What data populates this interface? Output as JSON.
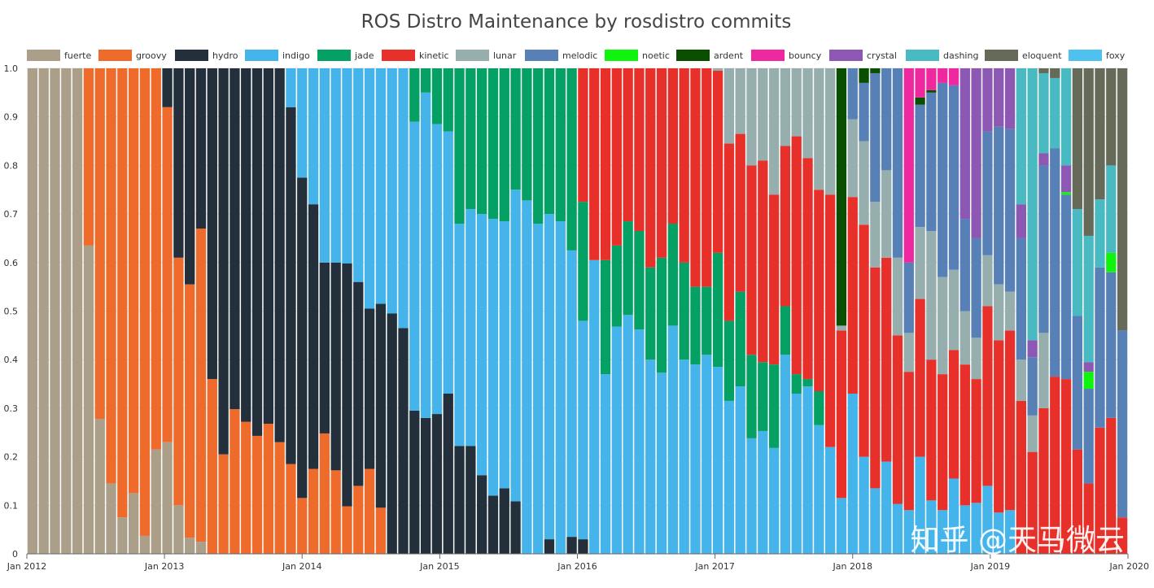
{
  "chart_data": {
    "type": "stacked-bar",
    "title": "ROS Distro Maintenance by rosdistro commits",
    "xlabel": "",
    "ylabel": "",
    "ylim": [
      0,
      1
    ],
    "yticks": [
      "0",
      "0.1",
      "0.2",
      "0.3",
      "0.4",
      "0.5",
      "0.6",
      "0.7",
      "0.8",
      "0.9",
      "1.0"
    ],
    "x_range_months": [
      0,
      96
    ],
    "xticks": [
      {
        "label": "Jan 2012",
        "month": 0
      },
      {
        "label": "Jan 2013",
        "month": 12
      },
      {
        "label": "Jan 2014",
        "month": 24
      },
      {
        "label": "Jan 2015",
        "month": 36
      },
      {
        "label": "Jan 2016",
        "month": 48
      },
      {
        "label": "Jan 2017",
        "month": 60
      },
      {
        "label": "Jan 2018",
        "month": 72
      },
      {
        "label": "Jan 2019",
        "month": 84
      },
      {
        "label": "Jan 2020",
        "month": 96
      }
    ],
    "series": [
      {
        "name": "fuerte",
        "color": "#ab9f8a"
      },
      {
        "name": "groovy",
        "color": "#ee6b2b"
      },
      {
        "name": "hydro",
        "color": "#232f3a"
      },
      {
        "name": "indigo",
        "color": "#44b4ea"
      },
      {
        "name": "jade",
        "color": "#05a064"
      },
      {
        "name": "kinetic",
        "color": "#e73029"
      },
      {
        "name": "lunar",
        "color": "#96afae"
      },
      {
        "name": "melodic",
        "color": "#5780b7"
      },
      {
        "name": "noetic",
        "color": "#10f30c"
      },
      {
        "name": "ardent",
        "color": "#0a4f00"
      },
      {
        "name": "bouncy",
        "color": "#ee29a0"
      },
      {
        "name": "crystal",
        "color": "#8c58b4"
      },
      {
        "name": "dashing",
        "color": "#4abac2"
      },
      {
        "name": "eloquent",
        "color": "#666a58"
      },
      {
        "name": "foxy",
        "color": "#4fc1ef"
      }
    ],
    "bars": [
      {
        "fuerte": 1.0
      },
      {
        "fuerte": 1.0
      },
      {
        "fuerte": 1.0
      },
      {
        "fuerte": 1.0
      },
      {
        "fuerte": 1.0
      },
      {
        "fuerte": 0.635,
        "groovy": 0.365
      },
      {
        "fuerte": 0.278,
        "groovy": 0.722
      },
      {
        "fuerte": 0.145,
        "groovy": 0.855
      },
      {
        "fuerte": 0.075,
        "groovy": 0.925
      },
      {
        "fuerte": 0.125,
        "groovy": 0.875
      },
      {
        "fuerte": 0.037,
        "groovy": 0.963
      },
      {
        "fuerte": 0.215,
        "groovy": 0.785
      },
      {
        "fuerte": 0.23,
        "groovy": 0.69,
        "hydro": 0.08
      },
      {
        "fuerte": 0.1,
        "groovy": 0.51,
        "hydro": 0.39
      },
      {
        "fuerte": 0.033,
        "groovy": 0.522,
        "hydro": 0.445
      },
      {
        "fuerte": 0.025,
        "groovy": 0.645,
        "hydro": 0.33
      },
      {
        "groovy": 0.36,
        "hydro": 0.64
      },
      {
        "groovy": 0.205,
        "hydro": 0.795
      },
      {
        "groovy": 0.298,
        "hydro": 0.702
      },
      {
        "groovy": 0.272,
        "hydro": 0.728
      },
      {
        "groovy": 0.243,
        "hydro": 0.757
      },
      {
        "groovy": 0.268,
        "hydro": 0.732
      },
      {
        "groovy": 0.23,
        "hydro": 0.77
      },
      {
        "groovy": 0.185,
        "hydro": 0.735,
        "indigo": 0.08
      },
      {
        "groovy": 0.115,
        "hydro": 0.66,
        "indigo": 0.225
      },
      {
        "groovy": 0.175,
        "hydro": 0.545,
        "indigo": 0.28
      },
      {
        "groovy": 0.248,
        "hydro": 0.352,
        "indigo": 0.4
      },
      {
        "groovy": 0.172,
        "hydro": 0.428,
        "indigo": 0.4
      },
      {
        "groovy": 0.098,
        "hydro": 0.5,
        "indigo": 0.402
      },
      {
        "groovy": 0.14,
        "hydro": 0.42,
        "indigo": 0.44
      },
      {
        "groovy": 0.175,
        "hydro": 0.33,
        "indigo": 0.495
      },
      {
        "groovy": 0.095,
        "hydro": 0.42,
        "indigo": 0.485
      },
      {
        "hydro": 0.495,
        "indigo": 0.505
      },
      {
        "hydro": 0.465,
        "indigo": 0.535
      },
      {
        "hydro": 0.295,
        "indigo": 0.595,
        "jade": 0.11
      },
      {
        "hydro": 0.28,
        "indigo": 0.67,
        "jade": 0.05
      },
      {
        "hydro": 0.288,
        "indigo": 0.597,
        "jade": 0.115
      },
      {
        "hydro": 0.33,
        "indigo": 0.54,
        "jade": 0.13
      },
      {
        "hydro": 0.222,
        "indigo": 0.458,
        "jade": 0.32
      },
      {
        "hydro": 0.222,
        "indigo": 0.488,
        "jade": 0.29
      },
      {
        "hydro": 0.162,
        "indigo": 0.538,
        "jade": 0.3
      },
      {
        "hydro": 0.12,
        "indigo": 0.57,
        "jade": 0.31
      },
      {
        "hydro": 0.135,
        "indigo": 0.55,
        "jade": 0.315
      },
      {
        "hydro": 0.108,
        "indigo": 0.642,
        "jade": 0.25
      },
      {
        "indigo": 0.728,
        "jade": 0.272
      },
      {
        "indigo": 0.68,
        "jade": 0.32
      },
      {
        "hydro": 0.03,
        "indigo": 0.67,
        "jade": 0.3
      },
      {
        "indigo": 0.685,
        "jade": 0.315
      },
      {
        "hydro": 0.035,
        "indigo": 0.59,
        "jade": 0.375
      },
      {
        "hydro": 0.03,
        "indigo": 0.45,
        "jade": 0.245,
        "kinetic": 0.275
      },
      {
        "indigo": 0.605,
        "jade": 0.0,
        "kinetic": 0.395
      },
      {
        "indigo": 0.37,
        "jade": 0.235,
        "kinetic": 0.395
      },
      {
        "indigo": 0.468,
        "jade": 0.167,
        "kinetic": 0.365
      },
      {
        "indigo": 0.492,
        "jade": 0.193,
        "kinetic": 0.315
      },
      {
        "indigo": 0.462,
        "jade": 0.203,
        "kinetic": 0.335
      },
      {
        "indigo": 0.4,
        "jade": 0.19,
        "kinetic": 0.41
      },
      {
        "indigo": 0.373,
        "jade": 0.237,
        "kinetic": 0.39
      },
      {
        "indigo": 0.47,
        "jade": 0.21,
        "kinetic": 0.32
      },
      {
        "indigo": 0.4,
        "jade": 0.2,
        "kinetic": 0.4
      },
      {
        "indigo": 0.39,
        "jade": 0.16,
        "kinetic": 0.45
      },
      {
        "indigo": 0.41,
        "jade": 0.14,
        "kinetic": 0.45
      },
      {
        "indigo": 0.385,
        "jade": 0.235,
        "kinetic": 0.375,
        "lunar": 0.005
      },
      {
        "indigo": 0.315,
        "jade": 0.165,
        "kinetic": 0.365,
        "lunar": 0.155
      },
      {
        "indigo": 0.345,
        "jade": 0.195,
        "kinetic": 0.325,
        "lunar": 0.135
      },
      {
        "indigo": 0.238,
        "jade": 0.172,
        "kinetic": 0.39,
        "lunar": 0.2
      },
      {
        "indigo": 0.253,
        "jade": 0.142,
        "kinetic": 0.415,
        "lunar": 0.19
      },
      {
        "indigo": 0.218,
        "jade": 0.172,
        "kinetic": 0.35,
        "lunar": 0.26
      },
      {
        "indigo": 0.41,
        "jade": 0.1,
        "kinetic": 0.33,
        "lunar": 0.16
      },
      {
        "indigo": 0.33,
        "jade": 0.04,
        "kinetic": 0.49,
        "lunar": 0.14
      },
      {
        "indigo": 0.345,
        "jade": 0.015,
        "kinetic": 0.455,
        "lunar": 0.185
      },
      {
        "indigo": 0.265,
        "jade": 0.07,
        "kinetic": 0.415,
        "lunar": 0.25
      },
      {
        "indigo": 0.22,
        "jade": 0.0,
        "kinetic": 0.52,
        "lunar": 0.26
      },
      {
        "indigo": 0.115,
        "kinetic": 0.345,
        "lunar": 0.01,
        "ardent": 0.53
      },
      {
        "indigo": 0.33,
        "kinetic": 0.405,
        "lunar": 0.16,
        "melodic": 0.105
      },
      {
        "indigo": 0.2,
        "kinetic": 0.478,
        "lunar": 0.172,
        "melodic": 0.12,
        "ardent": 0.03
      },
      {
        "indigo": 0.135,
        "kinetic": 0.455,
        "lunar": 0.135,
        "melodic": 0.265,
        "ardent": 0.01
      },
      {
        "indigo": 0.19,
        "kinetic": 0.42,
        "lunar": 0.18,
        "melodic": 0.21
      },
      {
        "indigo": 0.103,
        "kinetic": 0.347,
        "lunar": 0.16,
        "melodic": 0.39
      },
      {
        "indigo": 0.09,
        "kinetic": 0.285,
        "lunar": 0.08,
        "melodic": 0.145,
        "bouncy": 0.4
      },
      {
        "indigo": 0.2,
        "kinetic": 0.325,
        "lunar": 0.148,
        "melodic": 0.252,
        "ardent": 0.015,
        "bouncy": 0.06
      },
      {
        "indigo": 0.11,
        "kinetic": 0.29,
        "lunar": 0.265,
        "melodic": 0.285,
        "ardent": 0.005,
        "bouncy": 0.045
      },
      {
        "indigo": 0.09,
        "kinetic": 0.28,
        "lunar": 0.2,
        "melodic": 0.4,
        "bouncy": 0.03
      },
      {
        "indigo": 0.155,
        "kinetic": 0.265,
        "lunar": 0.165,
        "melodic": 0.38,
        "bouncy": 0.035
      },
      {
        "indigo": 0.1,
        "kinetic": 0.29,
        "lunar": 0.11,
        "melodic": 0.19,
        "crystal": 0.31
      },
      {
        "indigo": 0.105,
        "kinetic": 0.255,
        "lunar": 0.085,
        "melodic": 0.205,
        "crystal": 0.35
      },
      {
        "indigo": 0.14,
        "kinetic": 0.37,
        "lunar": 0.105,
        "melodic": 0.255,
        "crystal": 0.13
      },
      {
        "indigo": 0.085,
        "kinetic": 0.355,
        "lunar": 0.115,
        "melodic": 0.325,
        "crystal": 0.12
      },
      {
        "indigo": 0.09,
        "kinetic": 0.37,
        "lunar": 0.08,
        "melodic": 0.335,
        "crystal": 0.125
      },
      {
        "kinetic": 0.315,
        "lunar": 0.085,
        "melodic": 0.25,
        "crystal": 0.07,
        "dashing": 0.28
      },
      {
        "kinetic": 0.21,
        "lunar": 0.075,
        "melodic": 0.12,
        "crystal": 0.035,
        "dashing": 0.56
      },
      {
        "kinetic": 0.3,
        "lunar": 0.155,
        "melodic": 0.345,
        "crystal": 0.025,
        "dashing": 0.165,
        "eloquent": 0.01
      },
      {
        "kinetic": 0.365,
        "lunar": 0.0,
        "melodic": 0.47,
        "crystal": 0.0,
        "dashing": 0.145,
        "eloquent": 0.02
      },
      {
        "kinetic": 0.36,
        "melodic": 0.38,
        "crystal": 0.055,
        "noetic": 0.005,
        "dashing": 0.2
      },
      {
        "kinetic": 0.215,
        "melodic": 0.275,
        "noetic": 0.0,
        "dashing": 0.22,
        "eloquent": 0.29
      },
      {
        "kinetic": 0.145,
        "melodic": 0.195,
        "noetic": 0.035,
        "crystal": 0.02,
        "dashing": 0.26,
        "eloquent": 0.345
      },
      {
        "kinetic": 0.26,
        "melodic": 0.33,
        "noetic": 0.0,
        "dashing": 0.14,
        "eloquent": 0.27
      },
      {
        "kinetic": 0.28,
        "melodic": 0.3,
        "noetic": 0.04,
        "crystal": 0.0,
        "dashing": 0.18,
        "eloquent": 0.2
      },
      {
        "kinetic": 0.075,
        "melodic": 0.385,
        "eloquent": 0.54
      }
    ]
  },
  "watermark": "知乎 @天马微云"
}
